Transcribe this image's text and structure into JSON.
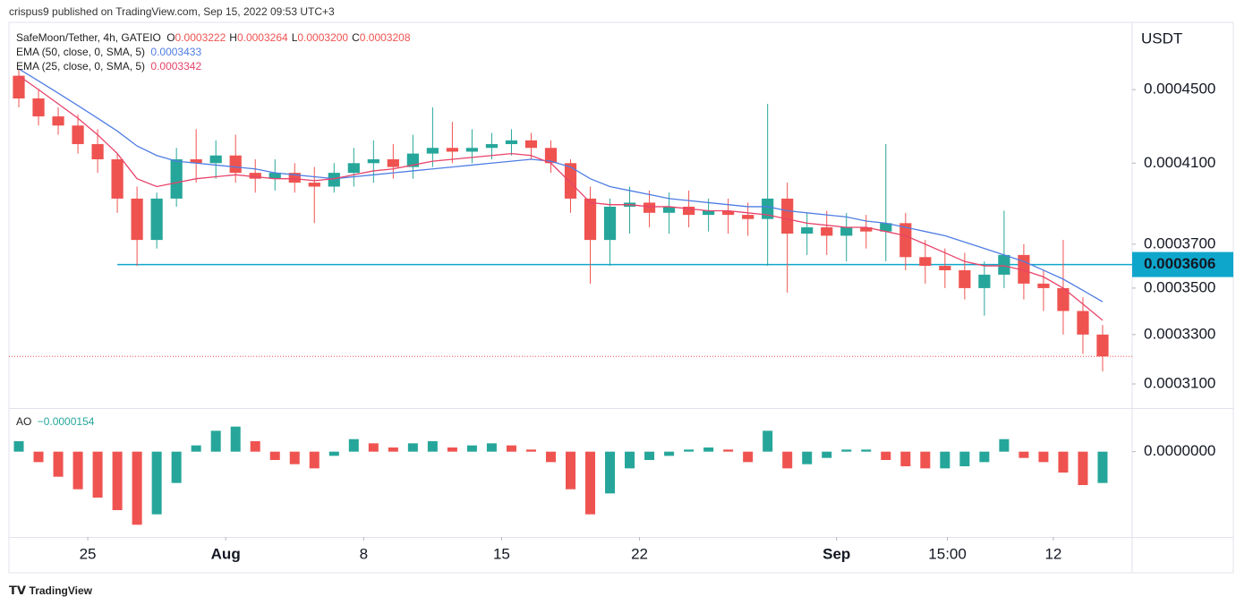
{
  "chart_data": {
    "type": "candlestick",
    "attribution": "crispus9 published on TradingView.com, Sep 15, 2022 09:53 UTC+3",
    "brand": "TradingView",
    "currency": "USDT",
    "legend": {
      "symbol": "SafeMoon/Tether, 4h, GATEIO",
      "ohlc": [
        {
          "label": "O",
          "value": "0.0003222"
        },
        {
          "label": "H",
          "value": "0.0003264"
        },
        {
          "label": "L",
          "value": "0.0003200"
        },
        {
          "label": "C",
          "value": "0.0003208"
        }
      ]
    },
    "up_color": "#26a69a",
    "down_color": "#ef5350",
    "log_scale": true,
    "ylim": [
      0.000301,
      0.00049
    ],
    "yticks": [
      {
        "value": 0.00045,
        "label": "0.0004500"
      },
      {
        "value": 0.00041,
        "label": "0.0004100"
      },
      {
        "value": 0.00037,
        "label": "0.0003700"
      },
      {
        "value": 0.00035,
        "label": "0.0003500"
      },
      {
        "value": 0.00033,
        "label": "0.0003300"
      },
      {
        "value": 0.00031,
        "label": "0.0003100"
      }
    ],
    "xlim": [
      "2022-07-21",
      "2022-09-16"
    ],
    "xticks": [
      {
        "value": "2022-07-25",
        "label": "25"
      },
      {
        "value": "2022-08-01",
        "label": "Aug"
      },
      {
        "value": "2022-08-08",
        "label": "8"
      },
      {
        "value": "2022-08-15",
        "label": "15"
      },
      {
        "value": "2022-08-22",
        "label": "22"
      },
      {
        "value": "2022-09-01",
        "label": "Sep"
      },
      {
        "value": "2022-09-06T15:00",
        "label": "15:00"
      },
      {
        "value": "2022-09-12",
        "label": "12"
      }
    ],
    "level": {
      "value": 0.0003606,
      "from": "2022-07-26",
      "color": "#0fa6cc"
    },
    "x": [
      "2022-07-21",
      "2022-07-22",
      "2022-07-23",
      "2022-07-24",
      "2022-07-25",
      "2022-07-26",
      "2022-07-27",
      "2022-07-28",
      "2022-07-29",
      "2022-07-30",
      "2022-07-31",
      "2022-08-01",
      "2022-08-02",
      "2022-08-03",
      "2022-08-04",
      "2022-08-05",
      "2022-08-06",
      "2022-08-07",
      "2022-08-08",
      "2022-08-09",
      "2022-08-10",
      "2022-08-11",
      "2022-08-12",
      "2022-08-13",
      "2022-08-14",
      "2022-08-15",
      "2022-08-16",
      "2022-08-17",
      "2022-08-18",
      "2022-08-19",
      "2022-08-20",
      "2022-08-21",
      "2022-08-22",
      "2022-08-23",
      "2022-08-24",
      "2022-08-25",
      "2022-08-26",
      "2022-08-27",
      "2022-08-28",
      "2022-08-29",
      "2022-08-30",
      "2022-08-31",
      "2022-09-01",
      "2022-09-02",
      "2022-09-03",
      "2022-09-04",
      "2022-09-05",
      "2022-09-06",
      "2022-09-07",
      "2022-09-08",
      "2022-09-09",
      "2022-09-10",
      "2022-09-11",
      "2022-09-12",
      "2022-09-13",
      "2022-09-14"
    ],
    "candles": {
      "open": [
        0.000458,
        0.000445,
        0.000435,
        0.00043,
        0.00042,
        0.000412,
        0.000392,
        0.000372,
        0.000392,
        0.000412,
        0.00041,
        0.000414,
        0.000405,
        0.000402,
        0.000405,
        0.0004,
        0.000398,
        0.000405,
        0.00041,
        0.000412,
        0.000408,
        0.000415,
        0.000418,
        0.000416,
        0.000418,
        0.00042,
        0.000422,
        0.000418,
        0.00041,
        0.000392,
        0.000372,
        0.000388,
        0.00039,
        0.000385,
        0.000388,
        0.000384,
        0.000386,
        0.000384,
        0.000382,
        0.000392,
        0.000375,
        0.000378,
        0.000374,
        0.000378,
        0.000376,
        0.00038,
        0.000364,
        0.00036,
        0.000358,
        0.00035,
        0.000356,
        0.000365,
        0.000352,
        0.00035,
        0.00034,
        0.00033
      ],
      "high": [
        0.000462,
        0.00045,
        0.00044,
        0.000436,
        0.000428,
        0.000415,
        0.000398,
        0.000395,
        0.000418,
        0.000428,
        0.000422,
        0.000425,
        0.000412,
        0.000412,
        0.00041,
        0.000408,
        0.00041,
        0.000418,
        0.000422,
        0.00042,
        0.000425,
        0.00044,
        0.000432,
        0.000428,
        0.000426,
        0.000428,
        0.000426,
        0.000422,
        0.000412,
        0.000398,
        0.000392,
        0.000398,
        0.000396,
        0.000395,
        0.000396,
        0.000392,
        0.000392,
        0.00039,
        0.000442,
        0.0004,
        0.000385,
        0.000386,
        0.000385,
        0.000384,
        0.00042,
        0.000385,
        0.000372,
        0.000368,
        0.000366,
        0.000362,
        0.000386,
        0.00037,
        0.000358,
        0.000372,
        0.000346,
        0.000334
      ],
      "low": [
        0.00044,
        0.00043,
        0.000425,
        0.000415,
        0.000405,
        0.000385,
        0.00036,
        0.000368,
        0.000388,
        0.0004,
        0.000402,
        0.0004,
        0.000395,
        0.000396,
        0.000395,
        0.00038,
        0.000395,
        0.000398,
        0.0004,
        0.000402,
        0.000402,
        0.000408,
        0.00041,
        0.00041,
        0.000412,
        0.000414,
        0.000412,
        0.000405,
        0.000385,
        0.000352,
        0.00036,
        0.000375,
        0.000378,
        0.000375,
        0.000378,
        0.000376,
        0.000375,
        0.000374,
        0.00036,
        0.000348,
        0.000365,
        0.000365,
        0.000362,
        0.000368,
        0.000362,
        0.000358,
        0.000352,
        0.00035,
        0.000345,
        0.000338,
        0.00035,
        0.000345,
        0.00034,
        0.00033,
        0.000322,
        0.000315
      ],
      "close": [
        0.000445,
        0.000435,
        0.00043,
        0.00042,
        0.000412,
        0.000392,
        0.000372,
        0.000392,
        0.000412,
        0.00041,
        0.000414,
        0.000405,
        0.000402,
        0.000405,
        0.0004,
        0.000398,
        0.000405,
        0.00041,
        0.000412,
        0.000408,
        0.000415,
        0.000418,
        0.000416,
        0.000418,
        0.00042,
        0.000422,
        0.000418,
        0.00041,
        0.000392,
        0.000372,
        0.000388,
        0.00039,
        0.000385,
        0.000388,
        0.000384,
        0.000386,
        0.000384,
        0.000382,
        0.000392,
        0.000375,
        0.000378,
        0.000374,
        0.000378,
        0.000376,
        0.00038,
        0.000364,
        0.00036,
        0.000358,
        0.00035,
        0.000356,
        0.000365,
        0.000352,
        0.00035,
        0.00034,
        0.00033,
        0.000321
      ]
    },
    "series": [
      {
        "name": "EMA (50, close, 0, SMA, 5)",
        "last_label": "0.0003433",
        "color": "#4f7de3",
        "values": [
          0.000462,
          0.000455,
          0.000448,
          0.000441,
          0.000434,
          0.000427,
          0.000419,
          0.000414,
          0.000411,
          0.00041,
          0.000409,
          0.000408,
          0.000407,
          0.000405,
          0.000404,
          0.000403,
          0.000402,
          0.000403,
          0.000404,
          0.000405,
          0.000406,
          0.000407,
          0.000408,
          0.000409,
          0.00041,
          0.000411,
          0.000412,
          0.000411,
          0.000408,
          0.000402,
          0.000398,
          0.000396,
          0.000394,
          0.000392,
          0.000391,
          0.00039,
          0.000389,
          0.000388,
          0.000388,
          0.000386,
          0.000385,
          0.000384,
          0.000383,
          0.000381,
          0.00038,
          0.000378,
          0.000376,
          0.000374,
          0.000371,
          0.000368,
          0.000365,
          0.000362,
          0.000358,
          0.000354,
          0.000349,
          0.000344
        ]
      },
      {
        "name": "EMA (25, close, 0, SMA, 5)",
        "last_label": "0.0003342",
        "color": "#e8436a",
        "values": [
          0.000458,
          0.00045,
          0.000442,
          0.000434,
          0.000425,
          0.000415,
          0.000402,
          0.000398,
          0.0004,
          0.000402,
          0.000403,
          0.000404,
          0.000403,
          0.000402,
          0.000402,
          0.000401,
          0.000402,
          0.000404,
          0.000406,
          0.000407,
          0.000409,
          0.000411,
          0.000412,
          0.000413,
          0.000414,
          0.000415,
          0.000414,
          0.00041,
          0.0004,
          0.00039,
          0.000389,
          0.000389,
          0.000388,
          0.000388,
          0.000387,
          0.000386,
          0.000386,
          0.000385,
          0.000384,
          0.000382,
          0.00038,
          0.000379,
          0.000378,
          0.000378,
          0.000376,
          0.000374,
          0.00037,
          0.000366,
          0.000362,
          0.00036,
          0.00036,
          0.000358,
          0.000355,
          0.00035,
          0.000343,
          0.000336
        ]
      }
    ],
    "ao": {
      "name": "AO",
      "value_label": "−0.0000154",
      "ylim": [
        -4e-05,
        2e-05
      ],
      "yticks": [
        {
          "value": 0,
          "label": "0.0000000"
        }
      ],
      "values": [
        5e-06,
        -5e-06,
        -1.2e-05,
        -1.8e-05,
        -2.2e-05,
        -2.8e-05,
        -3.5e-05,
        -3e-05,
        -1.5e-05,
        3e-06,
        1e-05,
        1.2e-05,
        5e-06,
        -4e-06,
        -6e-06,
        -8e-06,
        -2e-06,
        6e-06,
        4e-06,
        2e-06,
        4e-06,
        5e-06,
        2e-06,
        3e-06,
        4e-06,
        3e-06,
        1e-06,
        -5e-06,
        -1.8e-05,
        -3e-05,
        -2e-05,
        -8e-06,
        -4e-06,
        -2e-06,
        1e-06,
        2e-06,
        1e-06,
        -5e-06,
        1e-05,
        -8e-06,
        -6e-06,
        -3e-06,
        1e-06,
        1e-06,
        -4e-06,
        -7e-06,
        -8e-06,
        -8e-06,
        -7e-06,
        -5e-06,
        6e-06,
        -3e-06,
        -5e-06,
        -1e-05,
        -1.6e-05,
        -1.5e-05
      ]
    }
  }
}
